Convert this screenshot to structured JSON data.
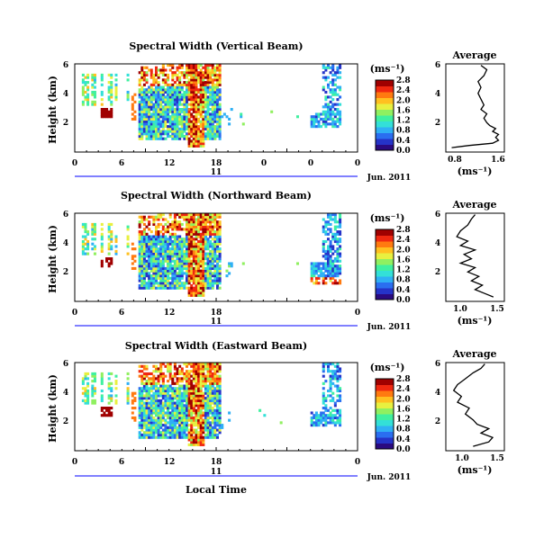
{
  "colorscale": [
    "#2a0a80",
    "#2533c8",
    "#2a6ef0",
    "#2fb0f5",
    "#33e0d8",
    "#40f0a0",
    "#90f060",
    "#e8f040",
    "#ffc020",
    "#ff7a10",
    "#f02810",
    "#a00000"
  ],
  "chart_data": [
    {
      "type": "heatmap",
      "title": "Spectral Width (Vertical Beam)",
      "ylabel": "Height (km)",
      "xticks": [
        "0",
        "6",
        "12",
        "18",
        "0"
      ],
      "xlim": [
        0,
        24
      ],
      "ylim": [
        0,
        6
      ],
      "yticks": [
        "2",
        "4",
        "6"
      ],
      "day_label": "11",
      "date_label": "Jun. 2011",
      "colorbar": {
        "unit": "(ms⁻¹)",
        "ticks": [
          "0.0",
          "0.4",
          "0.8",
          "1.2",
          "1.6",
          "2.0",
          "2.4",
          "2.8"
        ],
        "range": [
          0,
          2.8
        ]
      },
      "average": {
        "title": "Average",
        "xlabel": "(ms⁻¹)",
        "xticks": [
          "0.8",
          "1.6"
        ],
        "xlim": [
          0.7,
          1.7
        ],
        "ylim": [
          0,
          6
        ],
        "yticks": [
          "2",
          "4",
          "6"
        ],
        "profile": [
          [
            0.8,
            0.3
          ],
          [
            1.1,
            0.45
          ],
          [
            1.5,
            0.6
          ],
          [
            1.6,
            0.8
          ],
          [
            1.55,
            1.0
          ],
          [
            1.6,
            1.2
          ],
          [
            1.5,
            1.4
          ],
          [
            1.55,
            1.6
          ],
          [
            1.45,
            1.8
          ],
          [
            1.4,
            2.0
          ],
          [
            1.35,
            2.3
          ],
          [
            1.4,
            2.6
          ],
          [
            1.3,
            2.9
          ],
          [
            1.35,
            3.2
          ],
          [
            1.3,
            3.6
          ],
          [
            1.25,
            4.0
          ],
          [
            1.3,
            4.4
          ],
          [
            1.25,
            4.8
          ],
          [
            1.35,
            5.2
          ],
          [
            1.4,
            5.6
          ],
          [
            1.3,
            5.9
          ]
        ]
      }
    },
    {
      "type": "heatmap",
      "title": "Spectral Width (Northward Beam)",
      "ylabel": "Height (km)",
      "xticks": [
        "0",
        "6",
        "12",
        "18",
        "0"
      ],
      "xlim": [
        0,
        24
      ],
      "ylim": [
        0,
        6
      ],
      "yticks": [
        "2",
        "4",
        "6"
      ],
      "day_label": "11",
      "date_label": "Jun. 2011",
      "colorbar": {
        "unit": "(ms⁻¹)",
        "ticks": [
          "0.0",
          "0.4",
          "0.8",
          "1.2",
          "1.6",
          "2.0",
          "2.4",
          "2.8"
        ],
        "range": [
          0,
          2.8
        ]
      },
      "average": {
        "title": "Average",
        "xlabel": "(ms⁻¹)",
        "xticks": [
          "1.0",
          "1.5"
        ],
        "xlim": [
          0.8,
          1.6
        ],
        "ylim": [
          0,
          6
        ],
        "yticks": [
          "2",
          "4",
          "6"
        ],
        "profile": [
          [
            1.45,
            0.3
          ],
          [
            1.35,
            0.5
          ],
          [
            1.2,
            0.8
          ],
          [
            1.3,
            1.1
          ],
          [
            1.15,
            1.4
          ],
          [
            1.25,
            1.7
          ],
          [
            1.1,
            2.0
          ],
          [
            1.2,
            2.3
          ],
          [
            1.0,
            2.6
          ],
          [
            1.15,
            2.9
          ],
          [
            1.05,
            3.2
          ],
          [
            1.2,
            3.5
          ],
          [
            1.0,
            3.8
          ],
          [
            1.1,
            4.1
          ],
          [
            0.95,
            4.4
          ],
          [
            1.0,
            4.8
          ],
          [
            1.1,
            5.2
          ],
          [
            1.15,
            5.6
          ],
          [
            1.2,
            5.9
          ]
        ]
      }
    },
    {
      "type": "heatmap",
      "title": "Spectral Width (Eastward Beam)",
      "ylabel": "Height (km)",
      "xlabel": "Local Time",
      "xticks": [
        "0",
        "6",
        "12",
        "18",
        "0"
      ],
      "xlim": [
        0,
        24
      ],
      "ylim": [
        0,
        6
      ],
      "yticks": [
        "2",
        "4",
        "6"
      ],
      "day_label": "11",
      "date_label": "Jun. 2011",
      "colorbar": {
        "unit": "(ms⁻¹)",
        "ticks": [
          "0.0",
          "0.4",
          "0.8",
          "1.2",
          "1.6",
          "2.0",
          "2.4",
          "2.8"
        ],
        "range": [
          0,
          2.8
        ]
      },
      "average": {
        "title": "Average",
        "xlabel": "(ms⁻¹)",
        "xticks": [
          "1.0",
          "1.5"
        ],
        "xlim": [
          0.85,
          1.6
        ],
        "ylim": [
          0,
          6
        ],
        "yticks": [
          "2",
          "4",
          "6"
        ],
        "profile": [
          [
            1.2,
            0.3
          ],
          [
            1.4,
            0.6
          ],
          [
            1.45,
            0.9
          ],
          [
            1.3,
            1.2
          ],
          [
            1.4,
            1.5
          ],
          [
            1.25,
            1.8
          ],
          [
            1.2,
            2.1
          ],
          [
            1.1,
            2.5
          ],
          [
            1.15,
            2.9
          ],
          [
            1.0,
            3.3
          ],
          [
            1.05,
            3.7
          ],
          [
            0.95,
            4.1
          ],
          [
            1.0,
            4.5
          ],
          [
            1.1,
            4.9
          ],
          [
            1.2,
            5.3
          ],
          [
            1.3,
            5.6
          ],
          [
            1.35,
            5.9
          ]
        ]
      }
    }
  ]
}
